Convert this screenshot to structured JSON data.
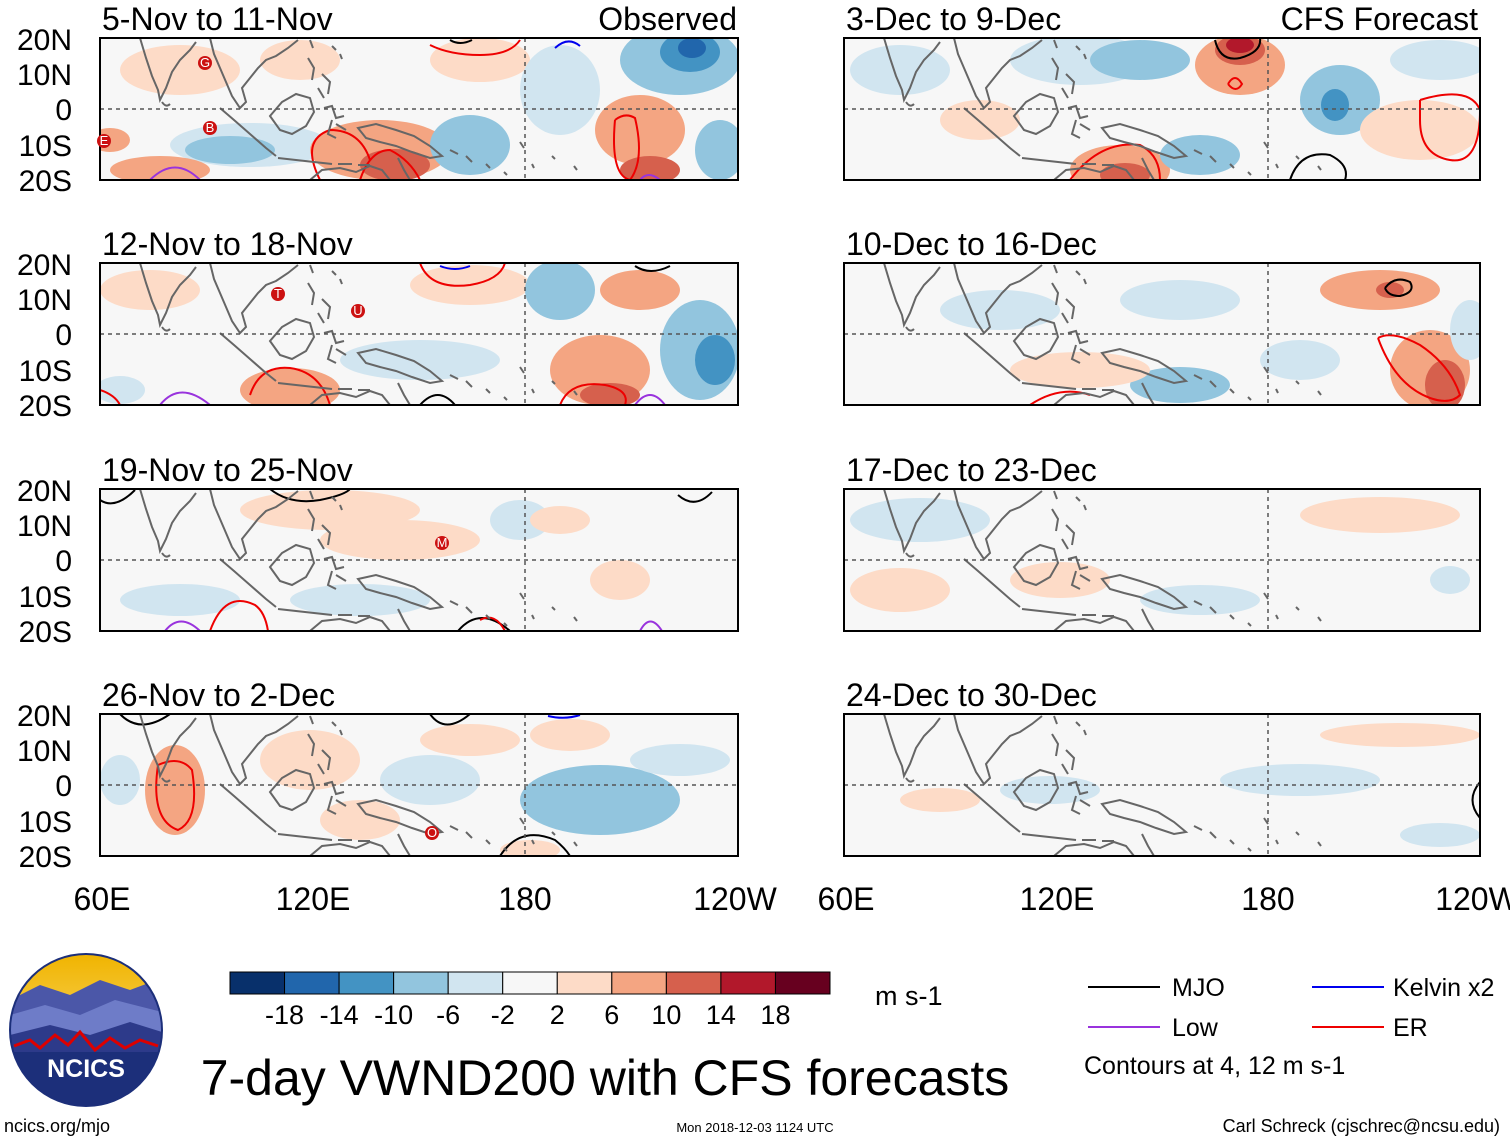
{
  "panels_left": [
    {
      "title": "5-Nov to 11-Nov",
      "tag": "Observed",
      "storms": [
        "G",
        "B",
        "E"
      ]
    },
    {
      "title": "12-Nov to 18-Nov",
      "tag": "",
      "storms": [
        "T",
        "U"
      ]
    },
    {
      "title": "19-Nov to 25-Nov",
      "tag": "",
      "storms": [
        "M"
      ]
    },
    {
      "title": "26-Nov to 2-Dec",
      "tag": "",
      "storms": [
        "O"
      ]
    }
  ],
  "panels_right": [
    {
      "title": "3-Dec to 9-Dec",
      "tag": "CFS Forecast"
    },
    {
      "title": "10-Dec to 16-Dec",
      "tag": ""
    },
    {
      "title": "17-Dec to 23-Dec",
      "tag": ""
    },
    {
      "title": "24-Dec to 30-Dec",
      "tag": ""
    }
  ],
  "lat_labels": [
    "20N",
    "10N",
    "0",
    "10S",
    "20S"
  ],
  "lon_labels": [
    "60E",
    "120E",
    "180",
    "120W"
  ],
  "colorbar": {
    "colors": [
      "#08306b",
      "#2166ac",
      "#4393c3",
      "#92c5de",
      "#d1e5f0",
      "#f7f7f7",
      "#fddbc7",
      "#f4a582",
      "#d6604d",
      "#b2182b",
      "#67001f"
    ],
    "ticks": [
      "-18",
      "-14",
      "-10",
      "-6",
      "-2",
      "2",
      "6",
      "10",
      "14",
      "18"
    ],
    "units": "m s-1"
  },
  "legend": {
    "items": [
      {
        "label": "MJO",
        "color": "#000000"
      },
      {
        "label": "Kelvin x2",
        "color": "#0000ee"
      },
      {
        "label": "Low",
        "color": "#9933dd"
      },
      {
        "label": "ER",
        "color": "#ee0000"
      }
    ],
    "note": "Contours at 4, 12 m s-1"
  },
  "logo_text": "NCICS",
  "main_title": "7-day VWND200 with CFS forecasts",
  "footer": {
    "url": "ncics.org/mjo",
    "timestamp": "Mon 2018-12-03 1124 UTC",
    "author": "Carl Schreck (cjschrec@ncsu.edu)"
  }
}
